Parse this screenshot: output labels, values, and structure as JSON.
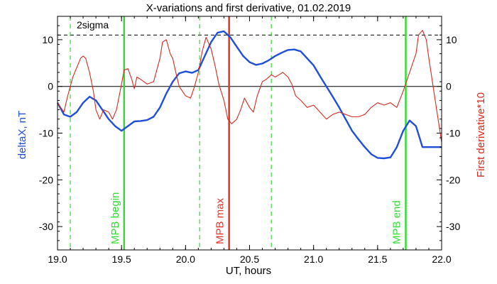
{
  "chart_data": {
    "type": "line",
    "title": "X-variations and first derivative, 01.02.2019",
    "xlabel": "UT, hours",
    "ylabel_left": "deltaX, nT",
    "ylabel_right": "First derivative*10",
    "xlim": [
      19.0,
      22.0
    ],
    "ylim": [
      -35,
      15
    ],
    "x_ticks": [
      "19.0",
      "19.5",
      "20.0",
      "20.5",
      "21.0",
      "21.5",
      "22.0"
    ],
    "x_tick_values": [
      19.0,
      19.5,
      20.0,
      20.5,
      21.0,
      21.5,
      22.0
    ],
    "y_ticks": [
      "10",
      "0",
      "-10",
      "-20",
      "-30"
    ],
    "y_tick_values": [
      10,
      0,
      -10,
      -20,
      -30
    ],
    "grid": false,
    "colors": {
      "deltaX": "#1f4fd8",
      "derivative": "#d42b1e",
      "mpb_edges": "#33dd33",
      "mpb_max": "#e83320",
      "axes": "#000000"
    },
    "sigma_label": "2sigma",
    "sigma_level": 11,
    "zero_level": 0,
    "vertical_lines": [
      {
        "x": 19.52,
        "label": "MPB begin",
        "style": "solid",
        "color": "#33dd33"
      },
      {
        "x": 20.34,
        "label": "MPB max",
        "style": "solid",
        "color": "#e83320"
      },
      {
        "x": 21.72,
        "label": "MPB end",
        "style": "solid",
        "color": "#33dd33"
      },
      {
        "x": 19.1,
        "label": "",
        "style": "dashed",
        "color": "#33dd33"
      },
      {
        "x": 20.11,
        "label": "",
        "style": "dashed",
        "color": "#33dd33"
      },
      {
        "x": 20.67,
        "label": "",
        "style": "dashed",
        "color": "#33dd33"
      }
    ],
    "series": [
      {
        "key": "deltaX",
        "color": "#1f4fd8",
        "x": [
          19.0,
          19.05,
          19.1,
          19.15,
          19.2,
          19.25,
          19.3,
          19.35,
          19.4,
          19.45,
          19.5,
          19.55,
          19.6,
          19.65,
          19.7,
          19.75,
          19.8,
          19.85,
          19.9,
          19.95,
          20.0,
          20.05,
          20.1,
          20.15,
          20.2,
          20.25,
          20.3,
          20.35,
          20.4,
          20.45,
          20.5,
          20.55,
          20.6,
          20.65,
          20.7,
          20.75,
          20.8,
          20.85,
          20.9,
          20.95,
          21.0,
          21.05,
          21.1,
          21.15,
          21.2,
          21.25,
          21.3,
          21.35,
          21.4,
          21.45,
          21.5,
          21.55,
          21.6,
          21.65,
          21.7,
          21.75,
          21.8,
          21.85,
          21.9,
          21.95,
          22.0
        ],
        "values": [
          -3.5,
          -6.0,
          -6.5,
          -5.5,
          -3.5,
          -2.2,
          -3.0,
          -5.0,
          -7.0,
          -8.5,
          -9.5,
          -8.5,
          -7.5,
          -7.4,
          -7.2,
          -6.5,
          -4.5,
          -1.5,
          1.0,
          2.8,
          3.2,
          2.9,
          3.5,
          6.5,
          9.5,
          11.5,
          11.8,
          10.5,
          8.5,
          6.5,
          5.2,
          4.6,
          4.9,
          5.6,
          6.5,
          7.2,
          7.8,
          7.9,
          7.5,
          6.0,
          4.5,
          2.2,
          0.0,
          -2.2,
          -4.5,
          -7.0,
          -9.5,
          -11.3,
          -13.0,
          -14.5,
          -15.3,
          -15.4,
          -15.2,
          -13.0,
          -9.5,
          -7.3,
          -8.5,
          -13.0,
          -13.0,
          -13.0,
          -13.0
        ]
      },
      {
        "key": "derivative",
        "color": "#d42b1e",
        "x": [
          19.0,
          19.05,
          19.08,
          19.12,
          19.15,
          19.18,
          19.2,
          19.22,
          19.25,
          19.28,
          19.3,
          19.33,
          19.36,
          19.4,
          19.43,
          19.46,
          19.5,
          19.52,
          19.55,
          19.58,
          19.6,
          19.62,
          19.65,
          19.7,
          19.75,
          19.8,
          19.82,
          19.85,
          19.88,
          19.9,
          19.92,
          19.95,
          20.0,
          20.04,
          20.07,
          20.1,
          20.13,
          20.16,
          20.2,
          20.23,
          20.26,
          20.3,
          20.33,
          20.36,
          20.4,
          20.43,
          20.46,
          20.5,
          20.53,
          20.56,
          20.6,
          20.63,
          20.67,
          20.7,
          20.73,
          20.76,
          20.8,
          20.83,
          20.86,
          20.9,
          20.95,
          21.0,
          21.05,
          21.1,
          21.15,
          21.2,
          21.25,
          21.3,
          21.35,
          21.4,
          21.45,
          21.5,
          21.55,
          21.6,
          21.65,
          21.7,
          21.75,
          21.8,
          21.82,
          21.85,
          21.88,
          21.9,
          21.95,
          22.0
        ],
        "values": [
          -3.5,
          -5.5,
          -2.0,
          2.0,
          4.0,
          6.0,
          6.5,
          6.0,
          3.0,
          -1.0,
          -5.0,
          -7.0,
          -5.0,
          -5.5,
          -7.0,
          -5.0,
          0.5,
          3.5,
          3.8,
          1.5,
          -0.5,
          2.0,
          1.5,
          0.5,
          1.0,
          6.0,
          9.5,
          10.0,
          7.0,
          6.0,
          3.5,
          0.0,
          -2.0,
          -2.5,
          0.0,
          3.0,
          7.5,
          10.5,
          8.0,
          4.5,
          0.5,
          -3.0,
          -7.0,
          -8.0,
          -7.0,
          -5.0,
          -2.5,
          -4.5,
          -5.5,
          -2.0,
          1.0,
          1.5,
          2.5,
          2.0,
          2.5,
          3.0,
          2.0,
          0.5,
          -2.0,
          -3.0,
          -4.5,
          -4.0,
          -5.5,
          -7.0,
          -6.0,
          -5.5,
          -6.0,
          -6.5,
          -6.5,
          -6.0,
          -4.5,
          -3.5,
          -4.0,
          -3.5,
          -4.5,
          -1.0,
          3.0,
          7.0,
          11.0,
          12.0,
          10.0,
          6.0,
          -3.0,
          -12.0
        ]
      }
    ]
  }
}
